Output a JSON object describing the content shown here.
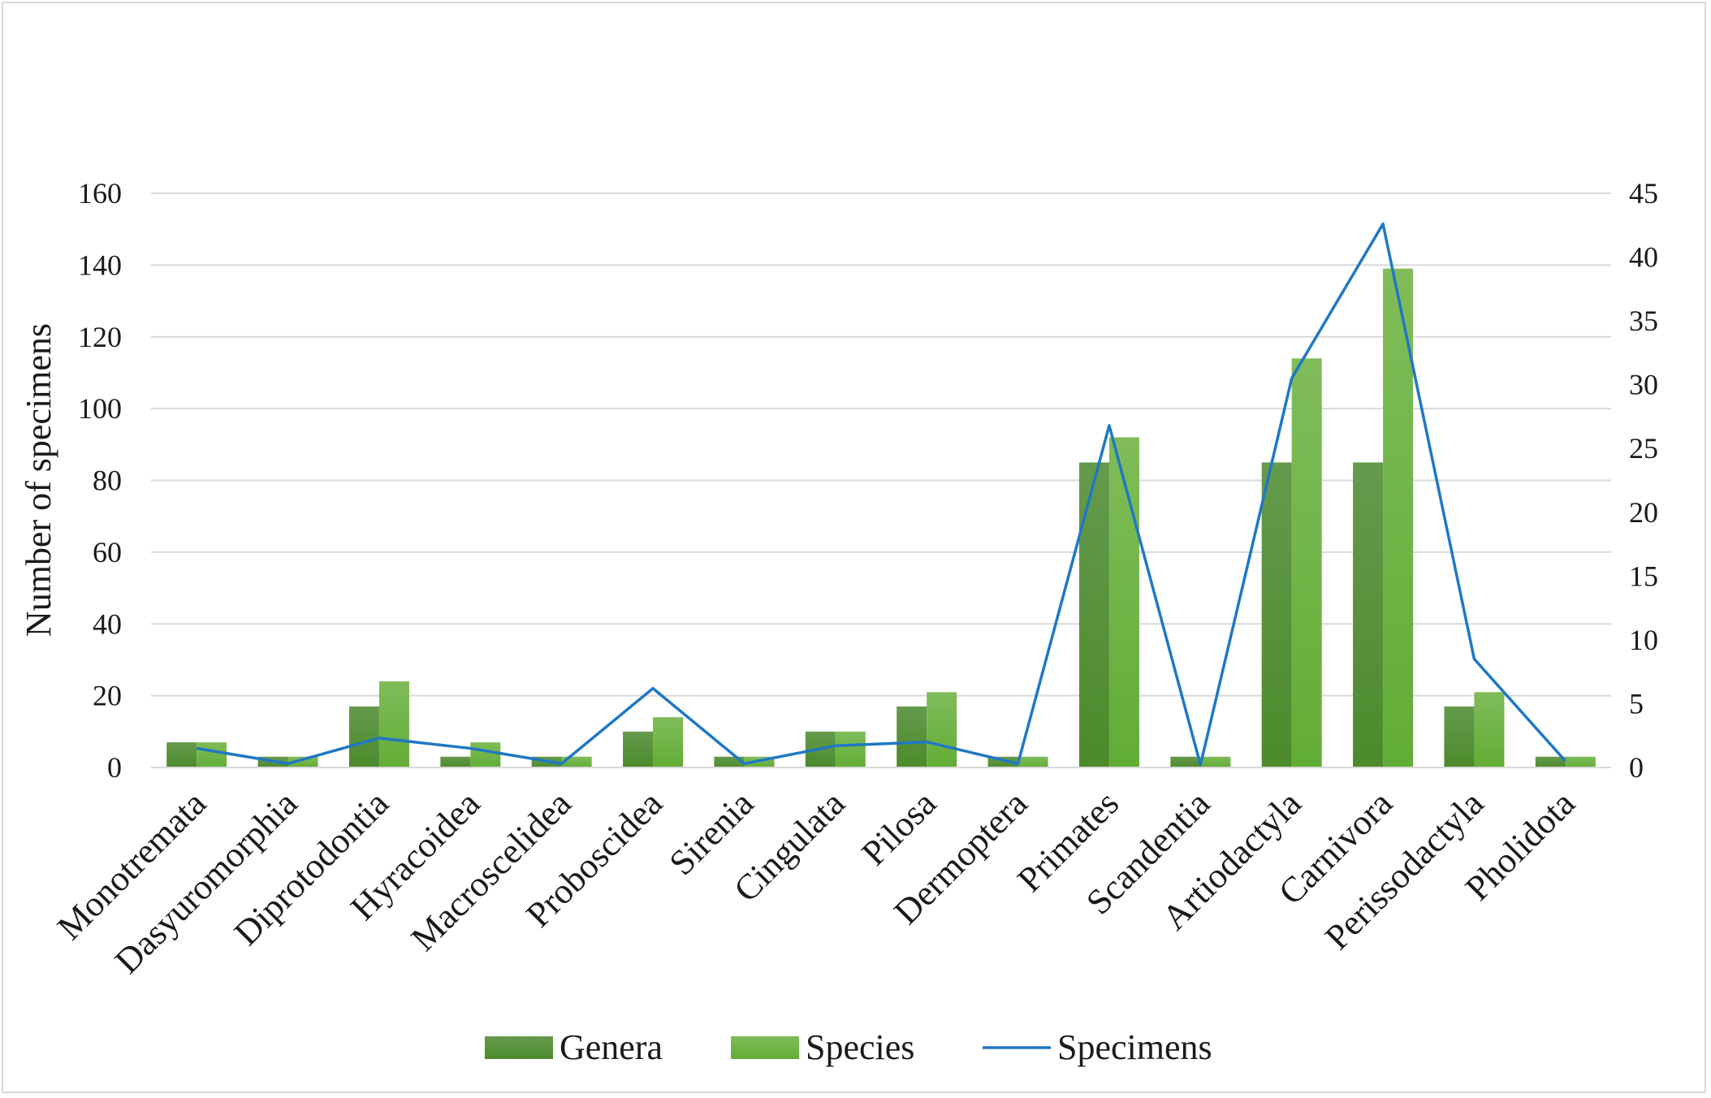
{
  "chart_data": {
    "type": "bar",
    "title": "",
    "xlabel": "",
    "ylabel": "Number of specimens",
    "y2label": "",
    "ylim": [
      0,
      160
    ],
    "y2lim": [
      0,
      45
    ],
    "yticks": [
      "0",
      "20",
      "40",
      "60",
      "80",
      "100",
      "120",
      "140",
      "160"
    ],
    "y2ticks": [
      "0",
      "5",
      "10",
      "15",
      "20",
      "25",
      "30",
      "35",
      "40",
      "45"
    ],
    "grid": true,
    "legend_position": "bottom",
    "categories": [
      "Monotremata",
      "Dasyuromorphia",
      "Diprotodontia",
      "Hyracoidea",
      "Macroscelidea",
      "Proboscidea",
      "Sirenia",
      "Cingulata",
      "Pilosa",
      "Dermoptera",
      "Primates",
      "Scandentia",
      "Artiodactyla",
      "Carnivora",
      "Perissodactyla",
      "Pholidota"
    ],
    "series": [
      {
        "name": "Genera",
        "type": "bar",
        "axis": "left",
        "color": "#4e8a2e",
        "values": [
          7,
          3,
          17,
          3,
          3,
          10,
          3,
          10,
          17,
          3,
          85,
          3,
          85,
          85,
          17,
          3
        ]
      },
      {
        "name": "Species",
        "type": "bar",
        "axis": "left",
        "color": "#6cb33f",
        "values": [
          7,
          3,
          24,
          7,
          3,
          14,
          3,
          10,
          21,
          3,
          92,
          3,
          114,
          139,
          21,
          3
        ]
      },
      {
        "name": "Specimens",
        "type": "line",
        "axis": "right",
        "color": "#1f78c4",
        "values": [
          1.5,
          0.3,
          2.3,
          1.5,
          0.3,
          6.2,
          0.3,
          1.7,
          2.0,
          0.3,
          26.8,
          0.2,
          30.5,
          42.6,
          8.5,
          0.5
        ]
      }
    ]
  }
}
